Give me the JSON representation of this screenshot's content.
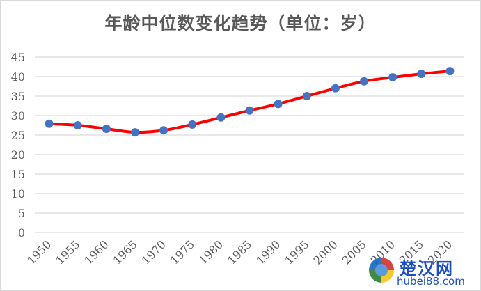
{
  "title": "年龄中位数变化趋势（单位：岁）",
  "watermark": {
    "cn": "楚汉网",
    "en": "hubei88.com"
  },
  "colors": {
    "line": "#ff0000",
    "marker": "#4472c4",
    "grid": "#d9d9d9",
    "text": "#595959"
  },
  "chart_data": {
    "type": "line",
    "title": "年龄中位数变化趋势（单位：岁）",
    "xlabel": "",
    "ylabel": "",
    "categories": [
      "1950",
      "1955",
      "1960",
      "1965",
      "1970",
      "1975",
      "1980",
      "1985",
      "1990",
      "1995",
      "2000",
      "2005",
      "2010",
      "2015",
      "2020"
    ],
    "series": [
      {
        "name": "年龄中位数",
        "values": [
          27.9,
          27.5,
          26.6,
          25.7,
          26.2,
          27.7,
          29.5,
          31.3,
          33.0,
          35.0,
          37.0,
          38.8,
          39.8,
          40.7,
          41.4
        ]
      }
    ],
    "ylim": [
      0,
      45
    ],
    "yticks": [
      0,
      5,
      10,
      15,
      20,
      25,
      30,
      35,
      40,
      45
    ],
    "grid": true,
    "smooth": true,
    "legend": "none"
  }
}
